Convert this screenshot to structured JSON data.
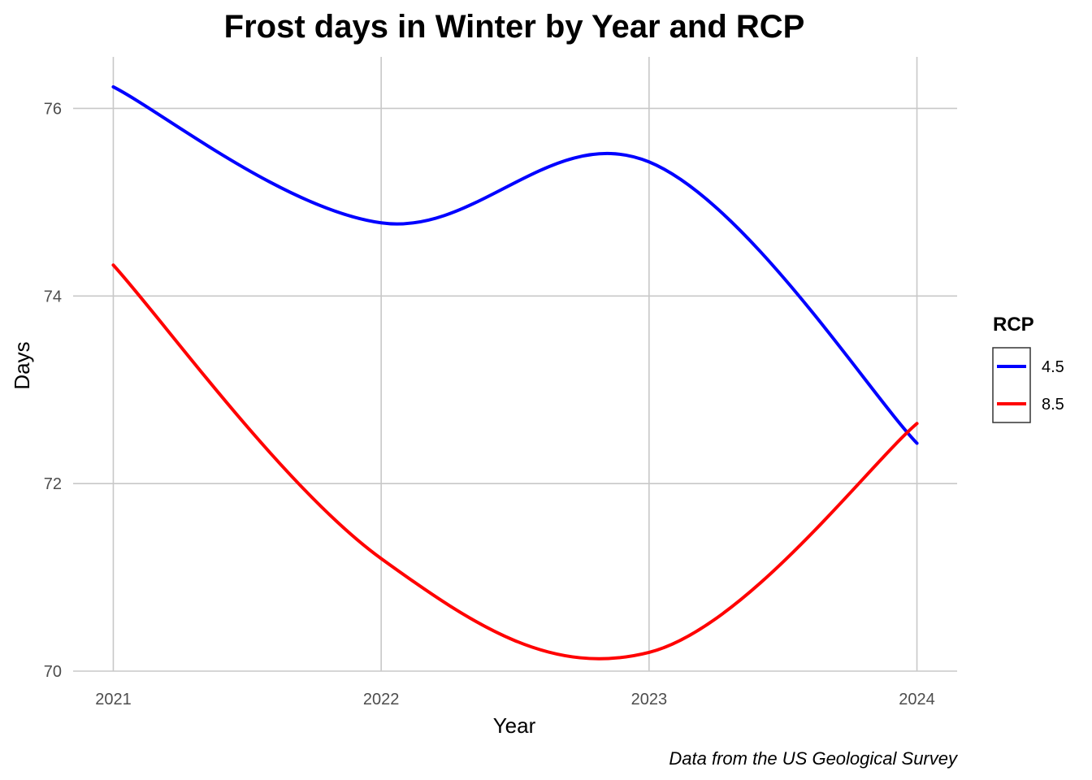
{
  "chart_data": {
    "type": "line",
    "title": "Frost days in Winter by Year and RCP",
    "xlabel": "Year",
    "ylabel": "Days",
    "caption": "Data from the US Geological Survey",
    "x": [
      2021,
      2022,
      2023,
      2024
    ],
    "x_tick_labels": [
      "2021",
      "2022",
      "2023",
      "2024"
    ],
    "y_ticks": [
      70,
      72,
      74,
      76
    ],
    "y_tick_labels": [
      "70",
      "72",
      "74",
      "76"
    ],
    "xlim": [
      2020.85,
      2024.15
    ],
    "ylim": [
      70,
      76.55
    ],
    "grid": true,
    "smoothed": true,
    "legend": {
      "title": "RCP",
      "placement": "right",
      "entries": [
        "4.5",
        "8.5"
      ]
    },
    "series": [
      {
        "name": "4.5",
        "color": "#0000ff",
        "values": [
          76.23,
          74.78,
          75.43,
          72.43
        ]
      },
      {
        "name": "8.5",
        "color": "#ff0000",
        "values": [
          74.33,
          71.2,
          70.2,
          72.64
        ]
      }
    ]
  }
}
